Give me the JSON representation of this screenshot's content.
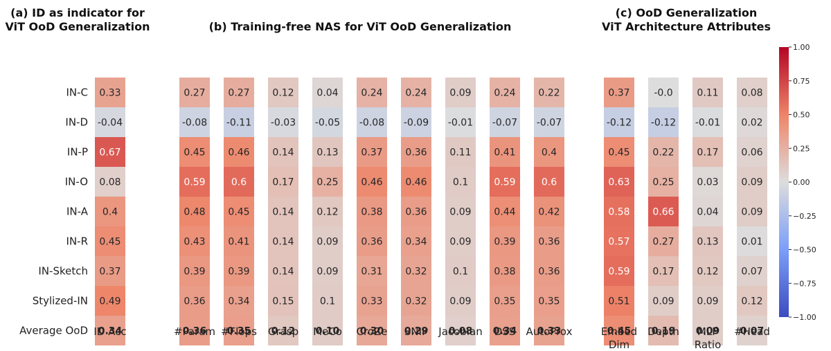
{
  "chart_data": [
    {
      "type": "heatmap",
      "title": "(a) ID as indicator for ViT OoD Generalization",
      "title_lines": [
        "(a) ID as indicator for",
        "ViT OoD Generalization"
      ],
      "rows": [
        "IN-C",
        "IN-D",
        "IN-P",
        "IN-O",
        "IN-A",
        "IN-R",
        "IN-Sketch",
        "Stylized-IN",
        "Average OoD"
      ],
      "columns": [
        [
          "ID Acc"
        ]
      ],
      "values": [
        [
          0.33
        ],
        [
          -0.04
        ],
        [
          0.67
        ],
        [
          0.08
        ],
        [
          0.4
        ],
        [
          0.45
        ],
        [
          0.37
        ],
        [
          0.49
        ],
        [
          0.34
        ]
      ],
      "labels": [
        [
          "0.33"
        ],
        [
          "-0.04"
        ],
        [
          "0.67"
        ],
        [
          "0.08"
        ],
        [
          "0.4"
        ],
        [
          "0.45"
        ],
        [
          "0.37"
        ],
        [
          "0.49"
        ],
        [
          "0.34"
        ]
      ],
      "bold_last_row": true
    },
    {
      "type": "heatmap",
      "title": "(b) Training-free NAS for ViT OoD Generalization",
      "title_lines": [
        "(b) Training-free NAS for ViT OoD Generalization"
      ],
      "rows": [
        "IN-C",
        "IN-D",
        "IN-P",
        "IN-O",
        "IN-A",
        "IN-R",
        "IN-Sketch",
        "Stylized-IN",
        "Average OoD"
      ],
      "columns": [
        [
          "#Param"
        ],
        [
          "#Flops"
        ],
        [
          "Grasp"
        ],
        [
          "MeCo"
        ],
        [
          "CroZe"
        ],
        [
          "SNIP"
        ],
        [
          "Jacobian"
        ],
        [
          "DSS"
        ],
        [
          "AutoProx"
        ]
      ],
      "values": [
        [
          0.27,
          0.27,
          0.12,
          0.04,
          0.24,
          0.24,
          0.09,
          0.24,
          0.22
        ],
        [
          -0.08,
          -0.11,
          -0.03,
          -0.05,
          -0.08,
          -0.09,
          -0.01,
          -0.07,
          -0.07
        ],
        [
          0.45,
          0.46,
          0.14,
          0.13,
          0.37,
          0.36,
          0.11,
          0.41,
          0.4
        ],
        [
          0.59,
          0.6,
          0.17,
          0.25,
          0.46,
          0.46,
          0.1,
          0.59,
          0.6
        ],
        [
          0.48,
          0.45,
          0.14,
          0.12,
          0.38,
          0.36,
          0.09,
          0.44,
          0.42
        ],
        [
          0.43,
          0.41,
          0.14,
          0.09,
          0.36,
          0.34,
          0.09,
          0.39,
          0.36
        ],
        [
          0.39,
          0.39,
          0.14,
          0.09,
          0.31,
          0.32,
          0.1,
          0.38,
          0.36
        ],
        [
          0.36,
          0.34,
          0.15,
          0.1,
          0.33,
          0.32,
          0.09,
          0.35,
          0.35
        ],
        [
          0.36,
          0.35,
          0.12,
          0.1,
          0.3,
          0.29,
          0.08,
          0.34,
          0.33
        ]
      ],
      "labels": [
        [
          "0.27",
          "0.27",
          "0.12",
          "0.04",
          "0.24",
          "0.24",
          "0.09",
          "0.24",
          "0.22"
        ],
        [
          "-0.08",
          "-0.11",
          "-0.03",
          "-0.05",
          "-0.08",
          "-0.09",
          "-0.01",
          "-0.07",
          "-0.07"
        ],
        [
          "0.45",
          "0.46",
          "0.14",
          "0.13",
          "0.37",
          "0.36",
          "0.11",
          "0.41",
          "0.4"
        ],
        [
          "0.59",
          "0.6",
          "0.17",
          "0.25",
          "0.46",
          "0.46",
          "0.1",
          "0.59",
          "0.6"
        ],
        [
          "0.48",
          "0.45",
          "0.14",
          "0.12",
          "0.38",
          "0.36",
          "0.09",
          "0.44",
          "0.42"
        ],
        [
          "0.43",
          "0.41",
          "0.14",
          "0.09",
          "0.36",
          "0.34",
          "0.09",
          "0.39",
          "0.36"
        ],
        [
          "0.39",
          "0.39",
          "0.14",
          "0.09",
          "0.31",
          "0.32",
          "0.1",
          "0.38",
          "0.36"
        ],
        [
          "0.36",
          "0.34",
          "0.15",
          "0.1",
          "0.33",
          "0.32",
          "0.09",
          "0.35",
          "0.35"
        ],
        [
          "0.36",
          "0.35",
          "0.12",
          "0.10",
          "0.30",
          "0.29",
          "0.08",
          "0.34",
          "0.33"
        ]
      ],
      "bold_last_row": true
    },
    {
      "type": "heatmap",
      "title": "(c) OoD Generalization ViT Architecture Attributes",
      "title_lines": [
        "(c) OoD Generalization",
        "ViT Architecture Attributes"
      ],
      "rows": [
        "IN-C",
        "IN-D",
        "IN-P",
        "IN-O",
        "IN-A",
        "IN-R",
        "IN-Sketch",
        "Stylized-IN",
        "Average OoD"
      ],
      "columns": [
        [
          "Embed",
          "Dim"
        ],
        [
          "Depth"
        ],
        [
          "MLP",
          "Ratio"
        ],
        [
          "#Head"
        ]
      ],
      "values": [
        [
          0.37,
          -0.0,
          0.11,
          0.08
        ],
        [
          -0.12,
          -0.12,
          -0.01,
          0.02
        ],
        [
          0.45,
          0.22,
          0.17,
          0.06
        ],
        [
          0.63,
          0.25,
          0.03,
          0.09
        ],
        [
          0.58,
          0.66,
          0.04,
          0.09
        ],
        [
          0.57,
          0.27,
          0.13,
          0.01
        ],
        [
          0.59,
          0.17,
          0.12,
          0.07
        ],
        [
          0.51,
          0.09,
          0.09,
          0.12
        ],
        [
          0.45,
          0.19,
          0.09,
          0.07
        ]
      ],
      "labels": [
        [
          "0.37",
          "-0.0",
          "0.11",
          "0.08"
        ],
        [
          "-0.12",
          "-0.12",
          "-0.01",
          "0.02"
        ],
        [
          "0.45",
          "0.22",
          "0.17",
          "0.06"
        ],
        [
          "0.63",
          "0.25",
          "0.03",
          "0.09"
        ],
        [
          "0.58",
          "0.66",
          "0.04",
          "0.09"
        ],
        [
          "0.57",
          "0.27",
          "0.13",
          "0.01"
        ],
        [
          "0.59",
          "0.17",
          "0.12",
          "0.07"
        ],
        [
          "0.51",
          "0.09",
          "0.09",
          "0.12"
        ],
        [
          "0.45",
          "0.19",
          "0.09",
          "0.07"
        ]
      ],
      "bold_last_row": true
    }
  ],
  "colorbar": {
    "colormap": "coolwarm",
    "vmin": -1.0,
    "vmax": 1.0,
    "ticks": [
      1.0,
      0.75,
      0.5,
      0.25,
      0.0,
      -0.25,
      -0.5,
      -0.75,
      -1.0
    ],
    "tick_labels": [
      "1.00",
      "0.75",
      "0.50",
      "0.25",
      "0.00",
      "−0.25",
      "−0.50",
      "−0.75",
      "−1.00"
    ]
  }
}
